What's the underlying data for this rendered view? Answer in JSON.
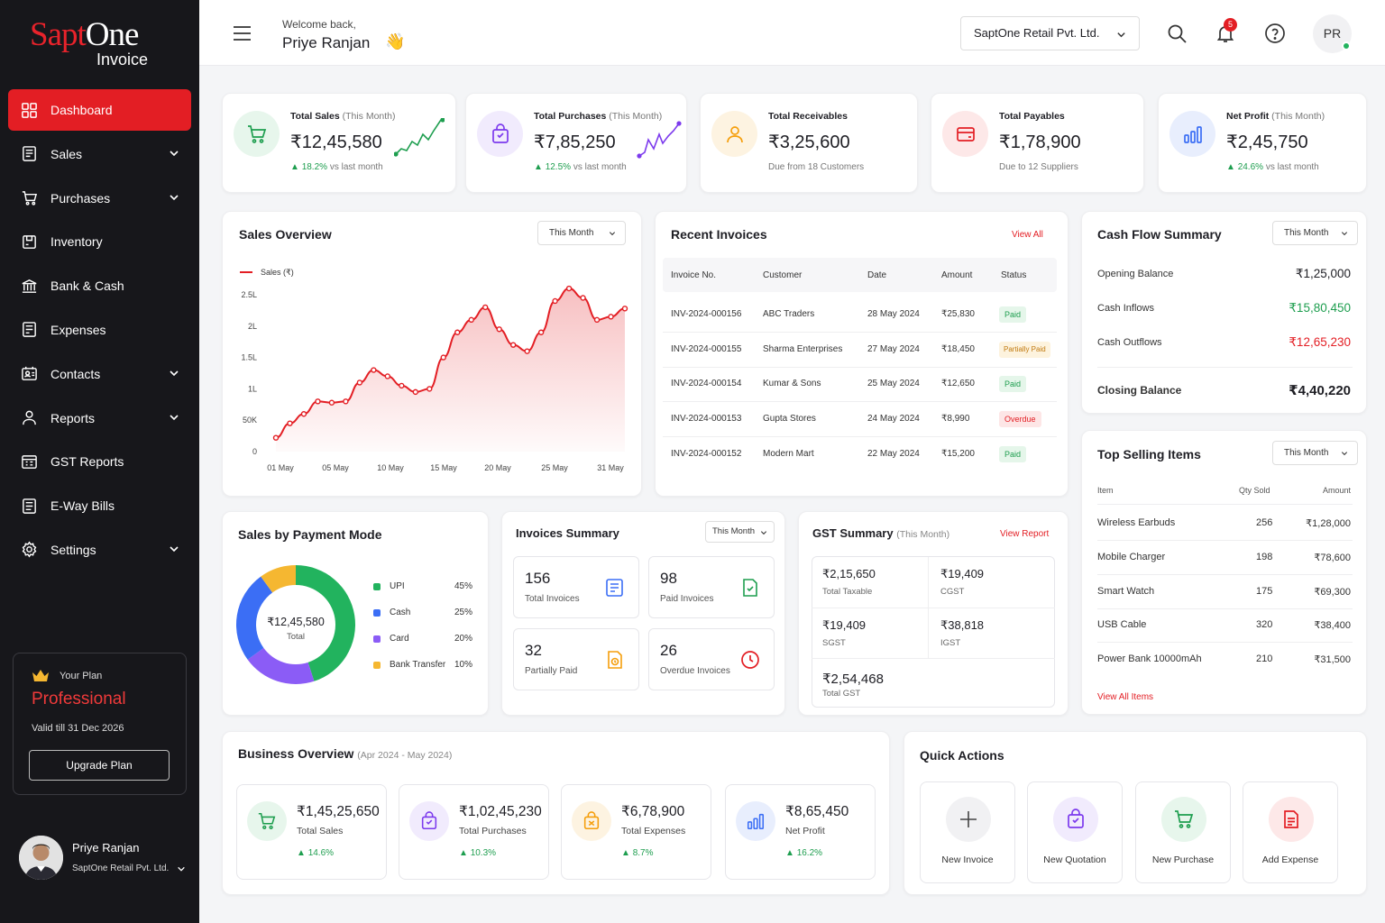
{
  "brand": {
    "name_red": "Sapt",
    "name_white": "One",
    "sub": "Invoice"
  },
  "sidebar": {
    "items": [
      {
        "label": "Dashboard",
        "icon": "dashboard-grid-icon"
      },
      {
        "label": "Sales",
        "icon": "sales-receipt-icon"
      },
      {
        "label": "Purchases",
        "icon": "cart-icon"
      },
      {
        "label": "Inventory",
        "icon": "inventory-box-icon"
      },
      {
        "label": "Bank & Cash",
        "icon": "bank-icon"
      },
      {
        "label": "Expenses",
        "icon": "expenses-icon"
      },
      {
        "label": "Contacts",
        "icon": "contacts-icon"
      },
      {
        "label": "Reports",
        "icon": "reports-icon"
      },
      {
        "label": "GST Reports",
        "icon": "gst-calculator-icon"
      },
      {
        "label": "E-Way Bills",
        "icon": "eway-bill-icon"
      },
      {
        "label": "Settings",
        "icon": "gear-icon"
      }
    ],
    "plan": {
      "label": "Your Plan",
      "name": "Professional",
      "valid": "Valid till 31 Dec 2026",
      "button": "Upgrade Plan"
    },
    "user": {
      "name": "Priye Ranjan",
      "company": "SaptOne Retail Pvt. Ltd."
    }
  },
  "header": {
    "welcome": "Welcome back,",
    "name": "Priye Ranjan",
    "company": "SaptOne Retail Pvt. Ltd.",
    "notif_count": "5",
    "avatar": "PR"
  },
  "kpis": [
    {
      "title": "Total Sales",
      "period": "(This Month)",
      "value": "₹12,45,580",
      "change": "18.2%",
      "change_text": "vs last month",
      "color": "#1e9e4f"
    },
    {
      "title": "Total Purchases",
      "period": "(This Month)",
      "value": "₹7,85,250",
      "change": "12.5%",
      "change_text": "vs last month",
      "color": "#7c3aed"
    },
    {
      "title": "Total Receivables",
      "period": "",
      "value": "₹3,25,600",
      "sub": "Due from 18 Customers",
      "color": "#f59e0b"
    },
    {
      "title": "Total Payables",
      "period": "",
      "value": "₹1,78,900",
      "sub": "Due to 12 Suppliers",
      "color": "#e31e24"
    },
    {
      "title": "Net Profit",
      "period": "(This Month)",
      "value": "₹2,45,750",
      "change": "24.6%",
      "change_text": "vs last month",
      "color": "#3b6ef5"
    }
  ],
  "sales_overview": {
    "title": "Sales Overview",
    "period": "This Month",
    "legend": "Sales (₹)",
    "y_ticks": [
      "2.5L",
      "2L",
      "1.5L",
      "1L",
      "50K",
      "0"
    ],
    "x_ticks": [
      "01 May",
      "05 May",
      "10 May",
      "15 May",
      "20 May",
      "25 May",
      "31 May"
    ]
  },
  "chart_data": {
    "type": "area",
    "title": "Sales Overview",
    "series": [
      {
        "name": "Sales (₹)",
        "values": [
          22000,
          45000,
          60000,
          80000,
          78000,
          80000,
          110000,
          130000,
          120000,
          105000,
          95000,
          100000,
          150000,
          190000,
          210000,
          230000,
          195000,
          170000,
          160000,
          190000,
          240000,
          260000,
          245000,
          210000,
          215000,
          228000
        ]
      }
    ],
    "ylim": [
      0,
      250000
    ],
    "x_ticks": [
      "01 May",
      "05 May",
      "10 May",
      "15 May",
      "20 May",
      "25 May",
      "31 May"
    ],
    "y_ticks": [
      "0",
      "50K",
      "1L",
      "1.5L",
      "2L",
      "2.5L"
    ],
    "color": "#e31e24"
  },
  "recent_invoices": {
    "title": "Recent Invoices",
    "view_all": "View All",
    "columns": [
      "Invoice No.",
      "Customer",
      "Date",
      "Amount",
      "Status"
    ],
    "rows": [
      [
        "INV-2024-000156",
        "ABC Traders",
        "28 May 2024",
        "₹25,830",
        "Paid"
      ],
      [
        "INV-2024-000155",
        "Sharma Enterprises",
        "27 May 2024",
        "₹18,450",
        "Partially Paid"
      ],
      [
        "INV-2024-000154",
        "Kumar & Sons",
        "25 May 2024",
        "₹12,650",
        "Paid"
      ],
      [
        "INV-2024-000153",
        "Gupta Stores",
        "24 May 2024",
        "₹8,990",
        "Overdue"
      ],
      [
        "INV-2024-000152",
        "Modern Mart",
        "22 May 2024",
        "₹15,200",
        "Paid"
      ]
    ]
  },
  "cash_flow": {
    "title": "Cash Flow Summary",
    "period": "This Month",
    "rows": [
      {
        "label": "Opening Balance",
        "value": "₹1,25,000"
      },
      {
        "label": "Cash Inflows",
        "value": "₹15,80,450"
      },
      {
        "label": "Cash Outflows",
        "value": "₹12,65,230"
      }
    ],
    "closing": {
      "label": "Closing Balance",
      "value": "₹4,40,220"
    }
  },
  "top_selling": {
    "title": "Top Selling Items",
    "period": "This Month",
    "columns": [
      "Item",
      "Qty Sold",
      "Amount"
    ],
    "rows": [
      [
        "Wireless Earbuds",
        "256",
        "₹1,28,000"
      ],
      [
        "Mobile Charger",
        "198",
        "₹78,600"
      ],
      [
        "Smart Watch",
        "175",
        "₹69,300"
      ],
      [
        "USB Cable",
        "320",
        "₹38,400"
      ],
      [
        "Power Bank 10000mAh",
        "210",
        "₹31,500"
      ]
    ],
    "view_all": "View All Items"
  },
  "payment_mode": {
    "title": "Sales by Payment Mode",
    "total": "₹12,45,580",
    "total_label": "Total",
    "items": [
      {
        "label": "UPI",
        "pct": "45%",
        "value": 45,
        "color": "#22b35e"
      },
      {
        "label": "Cash",
        "pct": "25%",
        "value": 25,
        "color": "#3b6ef5"
      },
      {
        "label": "Card",
        "pct": "20%",
        "value": 20,
        "color": "#8b5cf6"
      },
      {
        "label": "Bank Transfer",
        "pct": "10%",
        "value": 10,
        "color": "#f5b731"
      }
    ]
  },
  "invoices_summary": {
    "title": "Invoices Summary",
    "period": "This Month",
    "boxes": [
      {
        "n": "156",
        "l": "Total Invoices"
      },
      {
        "n": "98",
        "l": "Paid Invoices"
      },
      {
        "n": "32",
        "l": "Partially Paid"
      },
      {
        "n": "26",
        "l": "Overdue Invoices"
      }
    ]
  },
  "gst_summary": {
    "title": "GST Summary",
    "period": "(This Month)",
    "view": "View Report",
    "cells": [
      {
        "n": "₹2,15,650",
        "l": "Total Taxable"
      },
      {
        "n": "₹19,409",
        "l": "CGST"
      },
      {
        "n": "₹19,409",
        "l": "SGST"
      },
      {
        "n": "₹38,818",
        "l": "IGST"
      },
      {
        "n": "₹2,54,468",
        "l": "Total GST"
      }
    ]
  },
  "business_overview": {
    "title": "Business Overview",
    "period": "(Apr 2024 - May 2024)",
    "items": [
      {
        "v": "₹1,45,25,650",
        "l": "Total Sales",
        "g": "14.6%"
      },
      {
        "v": "₹1,02,45,230",
        "l": "Total Purchases",
        "g": "10.3%"
      },
      {
        "v": "₹6,78,900",
        "l": "Total Expenses",
        "g": "8.7%"
      },
      {
        "v": "₹8,65,450",
        "l": "Net Profit",
        "g": "16.2%"
      }
    ]
  },
  "quick_actions": {
    "title": "Quick Actions",
    "items": [
      {
        "l": "New Invoice"
      },
      {
        "l": "New Quotation"
      },
      {
        "l": "New Purchase"
      },
      {
        "l": "Add Expense"
      }
    ]
  }
}
